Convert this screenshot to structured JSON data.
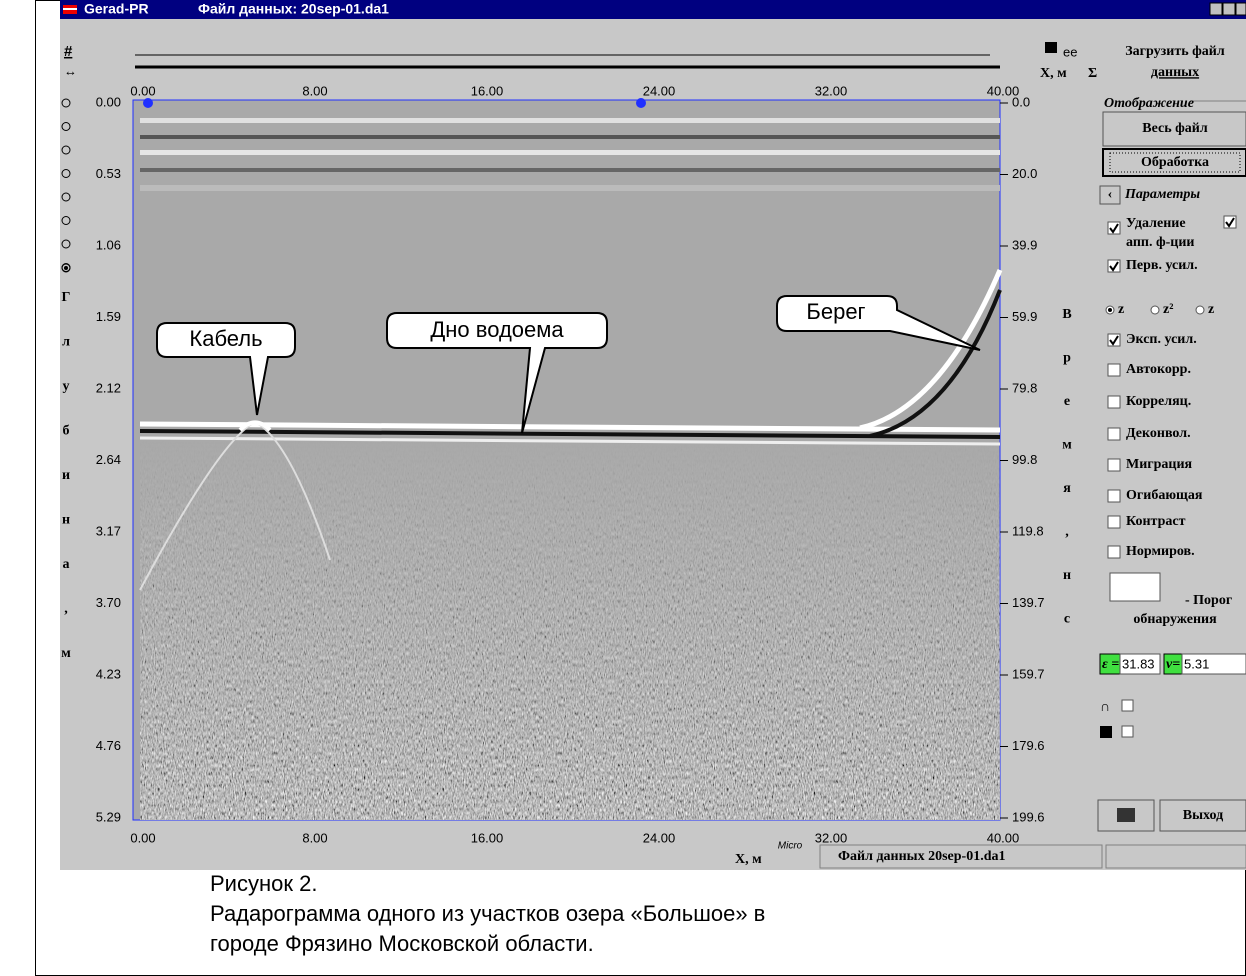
{
  "window": {
    "app": "Gerad-PR",
    "file": "Файл данных: 20sep-01.da1"
  },
  "toolbar": {
    "hash": "#",
    "load": [
      "Загрузить файл",
      "данных"
    ],
    "x_unit": "X, м",
    "sigma": "Σ"
  },
  "plot": {
    "x_labels": [
      "0.00",
      "8.00",
      "16.00",
      "24.00",
      "32.00",
      "40.00"
    ],
    "depth_labels": [
      "0.00",
      "0.53",
      "1.06",
      "1.59",
      "2.12",
      "2.64",
      "3.17",
      "3.70",
      "4.23",
      "4.76",
      "5.29"
    ],
    "time_labels": [
      "0.0",
      "20.0",
      "39.9",
      "59.9",
      "79.8",
      "99.8",
      "119.8",
      "139.7",
      "159.7",
      "179.6",
      "199.6"
    ],
    "depth_title": [
      "Г",
      "л",
      "у",
      "б",
      "и",
      "н",
      "а",
      ",",
      "м"
    ],
    "time_title": [
      "В",
      "р",
      "е",
      "м",
      "я",
      ",",
      "н",
      "с"
    ],
    "x_title": "X, м",
    "annotations": [
      "Кабель",
      "Дно водоема",
      "Берег"
    ]
  },
  "status": {
    "logo": "Micro",
    "file": "Файл данных 20sep-01.da1"
  },
  "panel": {
    "display_group": "Отображение",
    "whole_file": "Весь файл",
    "processing": "Обработка",
    "params_group": "Параметры",
    "back": "‹",
    "removal": {
      "label": [
        "Удаление",
        "апп. ф-ции"
      ],
      "checked": true,
      "second_checked": true
    },
    "options": [
      {
        "label": "Перв. усил.",
        "checked": true
      },
      {
        "label": "Эксп. усил.",
        "checked": true
      },
      {
        "label": "Автокорр.",
        "checked": false
      },
      {
        "label": "Корреляц.",
        "checked": false
      },
      {
        "label": "Деконвол.",
        "checked": false
      },
      {
        "label": "Миграция",
        "checked": false
      },
      {
        "label": "Огибающая",
        "checked": false
      },
      {
        "label": "Контраст",
        "checked": false
      },
      {
        "label": "Нормиров.",
        "checked": false
      }
    ],
    "gain_modes": [
      "z",
      "z²",
      "z"
    ],
    "gain_selected": 0,
    "threshold": [
      "- Порог",
      "обнаружения"
    ],
    "eps_label": "ε =",
    "eps_value": "31.83",
    "v_label": "v=",
    "v_value": "5.31",
    "exit": "Выход"
  },
  "caption": [
    "Рисунок 2.",
    "Радарограмма одного из участков озера «Большое» в",
    "городе Фрязино Московской области."
  ]
}
